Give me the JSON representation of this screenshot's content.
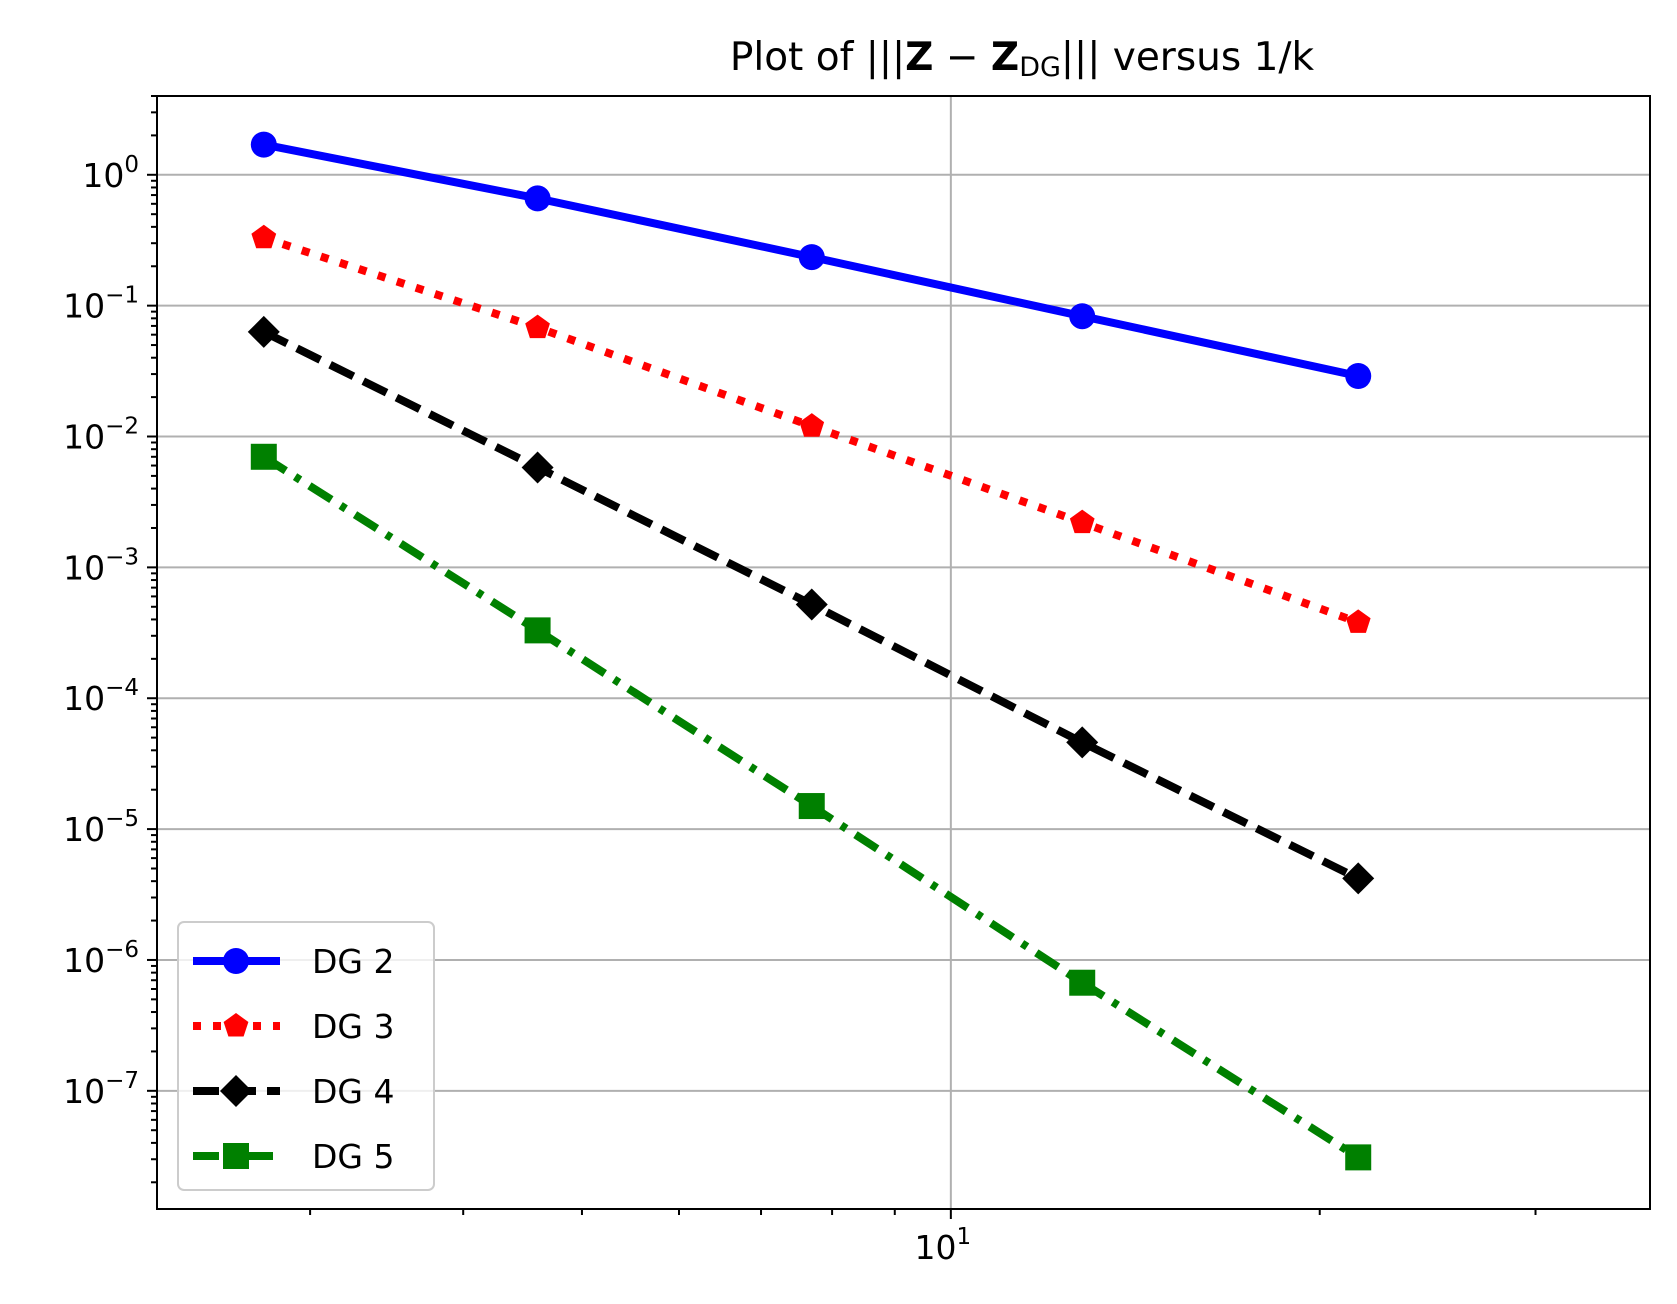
{
  "chart_data": {
    "type": "line",
    "title": {
      "prefix": "Plot of |||",
      "bold_a": "Z",
      "minus": " − ",
      "bold_b": "Z",
      "subscript": "DG",
      "suffix": "||| versus 1/k"
    },
    "xlabel": "",
    "ylabel": "",
    "x_scale": "log",
    "y_scale": "log",
    "x_range": [
      2.25,
      37.2
    ],
    "y_range": [
      1.25e-08,
      4.0
    ],
    "x_ticks": [
      {
        "value": 10,
        "base": "10",
        "exp": "1"
      }
    ],
    "y_ticks": [
      {
        "value": 1,
        "base": "10",
        "exp": "0"
      },
      {
        "value": 0.1,
        "base": "10",
        "exp": "−1"
      },
      {
        "value": 0.01,
        "base": "10",
        "exp": "−2"
      },
      {
        "value": 0.001,
        "base": "10",
        "exp": "−3"
      },
      {
        "value": 0.0001,
        "base": "10",
        "exp": "−4"
      },
      {
        "value": 1e-05,
        "base": "10",
        "exp": "−5"
      },
      {
        "value": 1e-06,
        "base": "10",
        "exp": "−6"
      },
      {
        "value": 1e-07,
        "base": "10",
        "exp": "−7"
      }
    ],
    "grid": true,
    "legend_position": "lower-left",
    "x": [
      2.75,
      4.6,
      7.7,
      12.8,
      21.5
    ],
    "series": [
      {
        "name": "DG 2",
        "values": [
          1.7,
          0.66,
          0.235,
          0.083,
          0.029
        ],
        "color": "#0000ff",
        "line_style": "solid",
        "marker": "circle"
      },
      {
        "name": "DG 3",
        "values": [
          0.33,
          0.068,
          0.012,
          0.0022,
          0.00038
        ],
        "color": "#ff0000",
        "line_style": "dotted",
        "marker": "pentagon"
      },
      {
        "name": "DG 4",
        "values": [
          0.063,
          0.0058,
          0.00052,
          4.6e-05,
          4.2e-06
        ],
        "color": "#000000",
        "line_style": "dashed",
        "marker": "diamond"
      },
      {
        "name": "DG 5",
        "values": [
          0.007,
          0.00033,
          1.5e-05,
          6.7e-07,
          3.1e-08
        ],
        "color": "#008000",
        "line_style": "dashdot",
        "marker": "square"
      }
    ]
  }
}
